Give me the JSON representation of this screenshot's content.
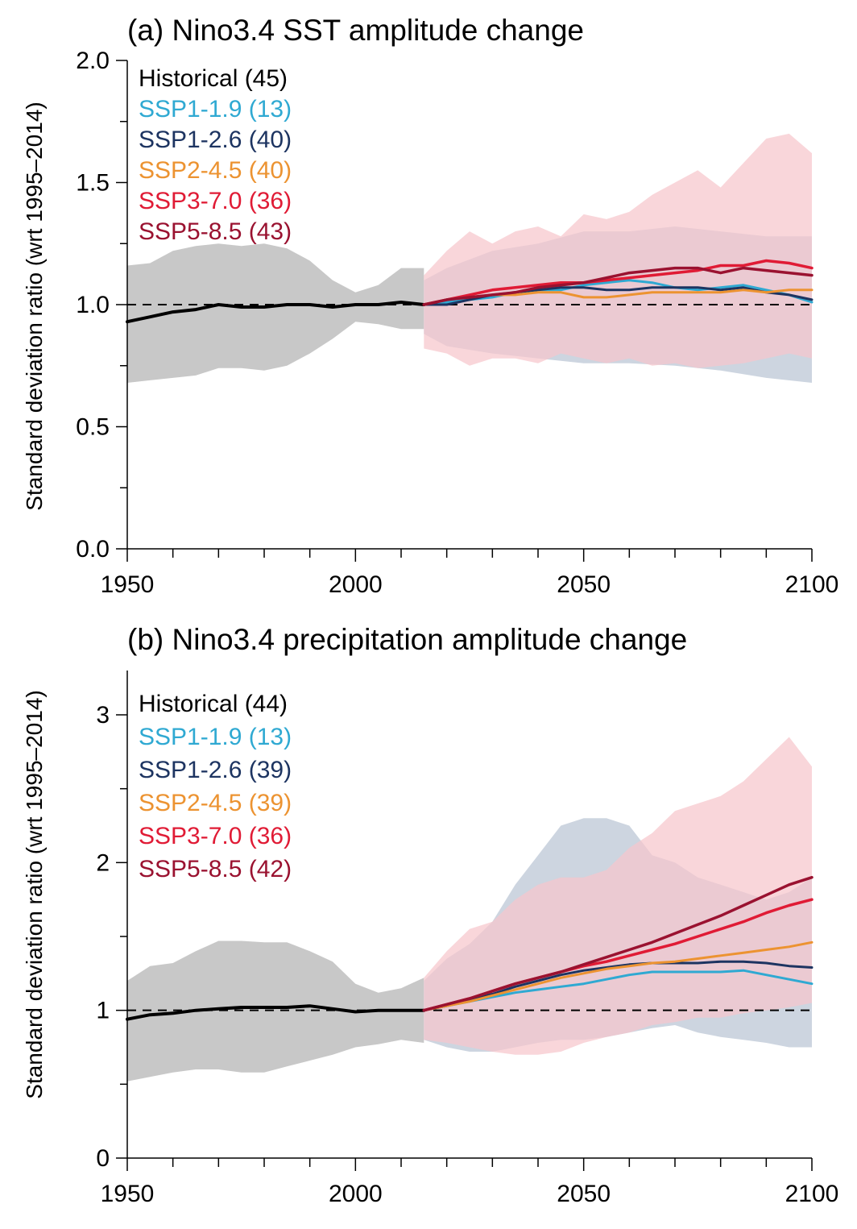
{
  "colors": {
    "historical": "#000000",
    "ssp119": "#2fa9d2",
    "ssp126": "#1d3461",
    "ssp245": "#ec9331",
    "ssp370": "#e01b35",
    "ssp585": "#9a1230",
    "hist_band": "#c8c8c8",
    "ssp126_band": "#cdd5e0",
    "ssp370_band": "#f6c6cc",
    "overlap_band": "#d4b0b8"
  },
  "chart_data": [
    {
      "type": "line",
      "title": "(a) Nino3.4 SST amplitude change",
      "xlabel": "",
      "ylabel": "Standard deviation ratio (wrt 1995–2014)",
      "xlim": [
        1950,
        2100
      ],
      "ylim": [
        0,
        2
      ],
      "xticks": [
        "1950",
        "2000",
        "2050",
        "2100"
      ],
      "yticks": [
        "0.0",
        "0.5",
        "1.0",
        "1.5",
        "2.0"
      ],
      "reference_line": 1.0,
      "legend_position": "top-left",
      "legend": [
        {
          "label": "Historical (45)",
          "color_key": "historical"
        },
        {
          "label": "SSP1-1.9 (13)",
          "color_key": "ssp119"
        },
        {
          "label": "SSP1-2.6 (40)",
          "color_key": "ssp126"
        },
        {
          "label": "SSP2-4.5 (40)",
          "color_key": "ssp245"
        },
        {
          "label": "SSP3-7.0 (36)",
          "color_key": "ssp370"
        },
        {
          "label": "SSP5-8.5 (43)",
          "color_key": "ssp585"
        }
      ],
      "bands": [
        {
          "name": "Historical range",
          "color_key": "hist_band",
          "x": [
            1950,
            1955,
            1960,
            1965,
            1970,
            1975,
            1980,
            1985,
            1990,
            1995,
            2000,
            2005,
            2010,
            2015
          ],
          "upper": [
            1.16,
            1.17,
            1.22,
            1.24,
            1.25,
            1.24,
            1.25,
            1.23,
            1.18,
            1.1,
            1.05,
            1.08,
            1.15,
            1.15
          ],
          "lower": [
            0.68,
            0.69,
            0.7,
            0.71,
            0.74,
            0.74,
            0.73,
            0.75,
            0.8,
            0.86,
            0.93,
            0.92,
            0.9,
            0.9
          ]
        },
        {
          "name": "SSP1-2.6 range",
          "color_key": "ssp126_band",
          "x": [
            2015,
            2020,
            2030,
            2040,
            2050,
            2060,
            2070,
            2080,
            2090,
            2100
          ],
          "upper": [
            1.1,
            1.15,
            1.22,
            1.25,
            1.3,
            1.3,
            1.32,
            1.3,
            1.28,
            1.28
          ],
          "lower": [
            0.88,
            0.83,
            0.8,
            0.78,
            0.76,
            0.76,
            0.75,
            0.73,
            0.7,
            0.68
          ]
        },
        {
          "name": "SSP3-7.0 range",
          "color_key": "ssp370_band",
          "x": [
            2015,
            2020,
            2025,
            2030,
            2035,
            2040,
            2045,
            2050,
            2055,
            2060,
            2065,
            2070,
            2075,
            2080,
            2085,
            2090,
            2095,
            2100
          ],
          "upper": [
            1.12,
            1.22,
            1.3,
            1.25,
            1.3,
            1.32,
            1.28,
            1.37,
            1.35,
            1.38,
            1.45,
            1.5,
            1.55,
            1.48,
            1.58,
            1.68,
            1.7,
            1.62
          ],
          "lower": [
            0.82,
            0.8,
            0.75,
            0.78,
            0.78,
            0.76,
            0.8,
            0.78,
            0.76,
            0.78,
            0.75,
            0.76,
            0.74,
            0.75,
            0.76,
            0.78,
            0.8,
            0.78
          ]
        }
      ],
      "series": [
        {
          "name": "Historical",
          "color_key": "historical",
          "width": 4,
          "x": [
            1950,
            1955,
            1960,
            1965,
            1970,
            1975,
            1980,
            1985,
            1990,
            1995,
            2000,
            2005,
            2010,
            2015
          ],
          "values": [
            0.93,
            0.95,
            0.97,
            0.98,
            1.0,
            0.99,
            0.99,
            1.0,
            1.0,
            0.99,
            1.0,
            1.0,
            1.01,
            1.0
          ]
        },
        {
          "name": "SSP1-1.9",
          "color_key": "ssp119",
          "width": 3,
          "x": [
            2015,
            2020,
            2025,
            2030,
            2035,
            2040,
            2045,
            2050,
            2055,
            2060,
            2065,
            2070,
            2075,
            2080,
            2085,
            2090,
            2095,
            2100
          ],
          "values": [
            1.0,
            1.01,
            1.02,
            1.03,
            1.05,
            1.06,
            1.06,
            1.08,
            1.09,
            1.1,
            1.09,
            1.07,
            1.06,
            1.07,
            1.08,
            1.06,
            1.04,
            1.01
          ]
        },
        {
          "name": "SSP1-2.6",
          "color_key": "ssp126",
          "width": 3,
          "x": [
            2015,
            2020,
            2025,
            2030,
            2035,
            2040,
            2045,
            2050,
            2055,
            2060,
            2065,
            2070,
            2075,
            2080,
            2085,
            2090,
            2095,
            2100
          ],
          "values": [
            1.0,
            1.0,
            1.02,
            1.04,
            1.05,
            1.06,
            1.07,
            1.07,
            1.06,
            1.06,
            1.07,
            1.07,
            1.07,
            1.06,
            1.07,
            1.05,
            1.04,
            1.02
          ]
        },
        {
          "name": "SSP2-4.5",
          "color_key": "ssp245",
          "width": 3,
          "x": [
            2015,
            2020,
            2025,
            2030,
            2035,
            2040,
            2045,
            2050,
            2055,
            2060,
            2065,
            2070,
            2075,
            2080,
            2085,
            2090,
            2095,
            2100
          ],
          "values": [
            1.0,
            1.02,
            1.03,
            1.04,
            1.04,
            1.05,
            1.05,
            1.03,
            1.03,
            1.04,
            1.05,
            1.05,
            1.05,
            1.05,
            1.06,
            1.05,
            1.06,
            1.06
          ]
        },
        {
          "name": "SSP3-7.0",
          "color_key": "ssp370",
          "width": 3.5,
          "x": [
            2015,
            2020,
            2025,
            2030,
            2035,
            2040,
            2045,
            2050,
            2055,
            2060,
            2065,
            2070,
            2075,
            2080,
            2085,
            2090,
            2095,
            2100
          ],
          "values": [
            1.0,
            1.02,
            1.04,
            1.06,
            1.07,
            1.08,
            1.09,
            1.09,
            1.1,
            1.11,
            1.12,
            1.13,
            1.14,
            1.16,
            1.16,
            1.18,
            1.17,
            1.15
          ]
        },
        {
          "name": "SSP5-8.5",
          "color_key": "ssp585",
          "width": 3.5,
          "x": [
            2015,
            2020,
            2025,
            2030,
            2035,
            2040,
            2045,
            2050,
            2055,
            2060,
            2065,
            2070,
            2075,
            2080,
            2085,
            2090,
            2095,
            2100
          ],
          "values": [
            1.0,
            1.02,
            1.03,
            1.04,
            1.05,
            1.07,
            1.08,
            1.09,
            1.11,
            1.13,
            1.14,
            1.15,
            1.15,
            1.13,
            1.15,
            1.14,
            1.13,
            1.12
          ]
        }
      ]
    },
    {
      "type": "line",
      "title": "(b) Nino3.4 precipitation amplitude change",
      "xlabel": "",
      "ylabel": "Standard deviation ratio (wrt 1995–2014)",
      "xlim": [
        1950,
        2100
      ],
      "ylim": [
        0,
        3.3
      ],
      "xticks": [
        "1950",
        "2000",
        "2050",
        "2100"
      ],
      "yticks": [
        "0",
        "1",
        "2",
        "3"
      ],
      "reference_line": 1.0,
      "legend_position": "top-left",
      "legend": [
        {
          "label": "Historical (44)",
          "color_key": "historical"
        },
        {
          "label": "SSP1-1.9 (13)",
          "color_key": "ssp119"
        },
        {
          "label": "SSP1-2.6 (39)",
          "color_key": "ssp126"
        },
        {
          "label": "SSP2-4.5 (39)",
          "color_key": "ssp245"
        },
        {
          "label": "SSP3-7.0 (36)",
          "color_key": "ssp370"
        },
        {
          "label": "SSP5-8.5 (42)",
          "color_key": "ssp585"
        }
      ],
      "bands": [
        {
          "name": "Historical range",
          "color_key": "hist_band",
          "x": [
            1950,
            1955,
            1960,
            1965,
            1970,
            1975,
            1980,
            1985,
            1990,
            1995,
            2000,
            2005,
            2010,
            2015
          ],
          "upper": [
            1.2,
            1.3,
            1.32,
            1.4,
            1.47,
            1.47,
            1.46,
            1.46,
            1.4,
            1.33,
            1.18,
            1.12,
            1.15,
            1.22
          ],
          "lower": [
            0.52,
            0.55,
            0.58,
            0.6,
            0.6,
            0.58,
            0.58,
            0.62,
            0.66,
            0.7,
            0.75,
            0.77,
            0.8,
            0.78
          ]
        },
        {
          "name": "SSP1-2.6 range",
          "color_key": "ssp126_band",
          "x": [
            2015,
            2020,
            2025,
            2030,
            2035,
            2040,
            2045,
            2050,
            2055,
            2060,
            2065,
            2070,
            2075,
            2080,
            2085,
            2090,
            2095,
            2100
          ],
          "upper": [
            1.2,
            1.35,
            1.45,
            1.6,
            1.85,
            2.05,
            2.25,
            2.3,
            2.3,
            2.25,
            2.05,
            2.0,
            1.9,
            1.85,
            1.8,
            1.75,
            1.8,
            1.9
          ],
          "lower": [
            0.8,
            0.75,
            0.72,
            0.72,
            0.75,
            0.78,
            0.8,
            0.8,
            0.82,
            0.85,
            0.88,
            0.9,
            0.85,
            0.82,
            0.8,
            0.78,
            0.75,
            0.75
          ]
        },
        {
          "name": "SSP3-7.0 range",
          "color_key": "ssp370_band",
          "x": [
            2015,
            2020,
            2025,
            2030,
            2035,
            2040,
            2045,
            2050,
            2055,
            2060,
            2065,
            2070,
            2075,
            2080,
            2085,
            2090,
            2095,
            2100
          ],
          "upper": [
            1.22,
            1.4,
            1.55,
            1.6,
            1.75,
            1.85,
            1.9,
            1.9,
            1.95,
            2.1,
            2.2,
            2.35,
            2.4,
            2.45,
            2.55,
            2.7,
            2.85,
            2.65
          ],
          "lower": [
            0.8,
            0.78,
            0.75,
            0.72,
            0.7,
            0.7,
            0.72,
            0.78,
            0.82,
            0.85,
            0.9,
            0.92,
            0.95,
            0.95,
            0.98,
            1.0,
            1.02,
            1.05
          ]
        }
      ],
      "series": [
        {
          "name": "Historical",
          "color_key": "historical",
          "width": 4,
          "x": [
            1950,
            1955,
            1960,
            1965,
            1970,
            1975,
            1980,
            1985,
            1990,
            1995,
            2000,
            2005,
            2010,
            2015
          ],
          "values": [
            0.94,
            0.97,
            0.98,
            1.0,
            1.01,
            1.02,
            1.02,
            1.02,
            1.03,
            1.01,
            0.99,
            1.0,
            1.0,
            1.0
          ]
        },
        {
          "name": "SSP1-1.9",
          "color_key": "ssp119",
          "width": 3,
          "x": [
            2015,
            2020,
            2025,
            2030,
            2035,
            2040,
            2045,
            2050,
            2055,
            2060,
            2065,
            2070,
            2075,
            2080,
            2085,
            2090,
            2095,
            2100
          ],
          "values": [
            1.0,
            1.03,
            1.06,
            1.09,
            1.12,
            1.14,
            1.16,
            1.18,
            1.21,
            1.24,
            1.26,
            1.26,
            1.26,
            1.26,
            1.27,
            1.24,
            1.21,
            1.18
          ]
        },
        {
          "name": "SSP1-2.6",
          "color_key": "ssp126",
          "width": 3,
          "x": [
            2015,
            2020,
            2025,
            2030,
            2035,
            2040,
            2045,
            2050,
            2055,
            2060,
            2065,
            2070,
            2075,
            2080,
            2085,
            2090,
            2095,
            2100
          ],
          "values": [
            1.0,
            1.03,
            1.07,
            1.11,
            1.16,
            1.2,
            1.24,
            1.27,
            1.29,
            1.31,
            1.32,
            1.32,
            1.32,
            1.33,
            1.33,
            1.32,
            1.3,
            1.29
          ]
        },
        {
          "name": "SSP2-4.5",
          "color_key": "ssp245",
          "width": 3,
          "x": [
            2015,
            2020,
            2025,
            2030,
            2035,
            2040,
            2045,
            2050,
            2055,
            2060,
            2065,
            2070,
            2075,
            2080,
            2085,
            2090,
            2095,
            2100
          ],
          "values": [
            1.0,
            1.03,
            1.06,
            1.1,
            1.14,
            1.18,
            1.22,
            1.25,
            1.28,
            1.3,
            1.32,
            1.33,
            1.35,
            1.37,
            1.39,
            1.41,
            1.43,
            1.46
          ]
        },
        {
          "name": "SSP3-7.0",
          "color_key": "ssp370",
          "width": 3.5,
          "x": [
            2015,
            2020,
            2025,
            2030,
            2035,
            2040,
            2045,
            2050,
            2055,
            2060,
            2065,
            2070,
            2075,
            2080,
            2085,
            2090,
            2095,
            2100
          ],
          "values": [
            1.0,
            1.04,
            1.08,
            1.13,
            1.18,
            1.22,
            1.26,
            1.3,
            1.33,
            1.37,
            1.41,
            1.45,
            1.5,
            1.55,
            1.6,
            1.66,
            1.71,
            1.75
          ]
        },
        {
          "name": "SSP5-8.5",
          "color_key": "ssp585",
          "width": 3.5,
          "x": [
            2015,
            2020,
            2025,
            2030,
            2035,
            2040,
            2045,
            2050,
            2055,
            2060,
            2065,
            2070,
            2075,
            2080,
            2085,
            2090,
            2095,
            2100
          ],
          "values": [
            1.0,
            1.04,
            1.08,
            1.13,
            1.18,
            1.22,
            1.26,
            1.31,
            1.36,
            1.41,
            1.46,
            1.52,
            1.58,
            1.64,
            1.71,
            1.78,
            1.85,
            1.9
          ]
        }
      ]
    }
  ]
}
